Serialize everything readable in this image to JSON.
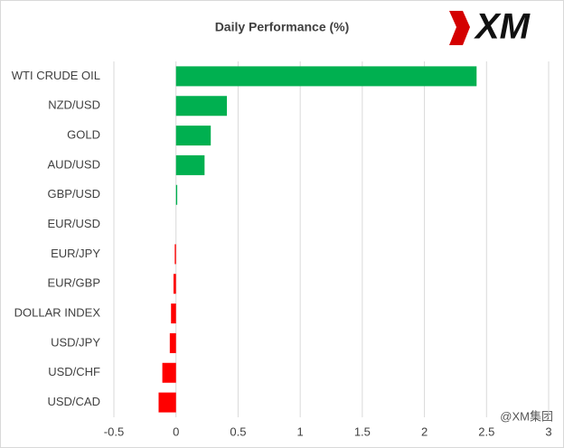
{
  "chart_data": {
    "type": "bar",
    "orientation": "horizontal",
    "title": "Daily Performance  (%)",
    "categories": [
      "WTI CRUDE OIL",
      "NZD/USD",
      "GOLD",
      "AUD/USD",
      "GBP/USD",
      "EUR/USD",
      "EUR/JPY",
      "EUR/GBP",
      "DOLLAR INDEX",
      "USD/JPY",
      "USD/CHF",
      "USD/CAD"
    ],
    "values": [
      2.42,
      0.41,
      0.28,
      0.23,
      0.01,
      0,
      -0.01,
      -0.02,
      -0.04,
      -0.05,
      -0.11,
      -0.14
    ],
    "positive_color": "#00b050",
    "negative_color": "#ff0000",
    "xlim": [
      -0.5,
      3
    ],
    "xticks": [
      -0.5,
      0,
      0.5,
      1,
      1.5,
      2,
      2.5,
      3
    ],
    "grid": true
  },
  "logo": "XM",
  "watermark": "@XM集团"
}
